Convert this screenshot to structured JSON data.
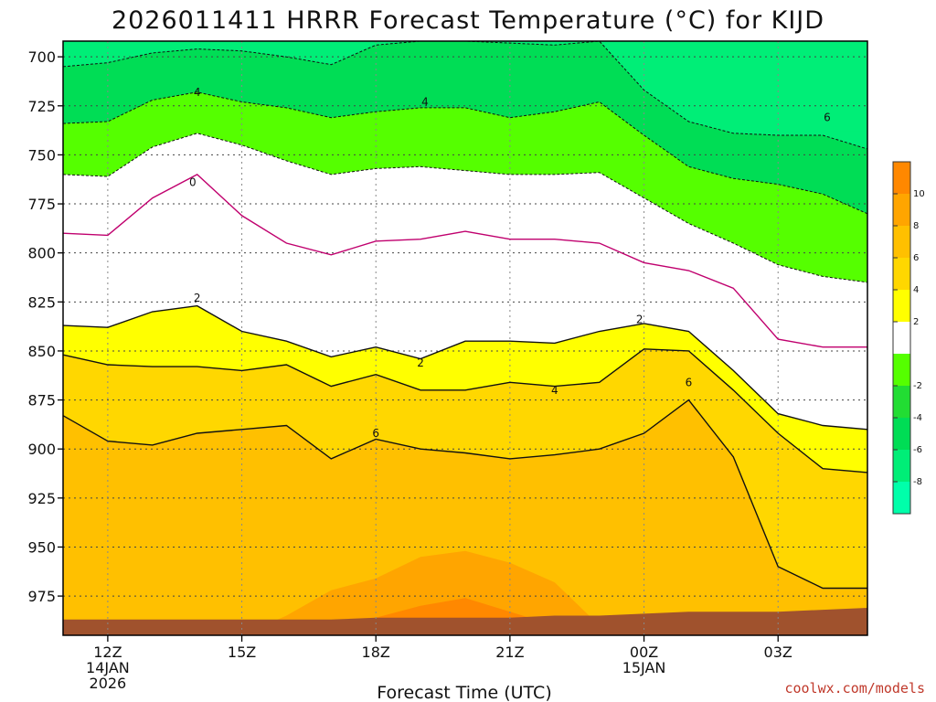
{
  "chart_data": {
    "type": "heatmap",
    "title": "2026011411 HRRR Forecast Temperature (°C) for KIJD",
    "xlabel": "Forecast Time (UTC)",
    "ylabel": "",
    "credit": "coolwx.com/models",
    "x_domain": [
      11,
      29
    ],
    "y_range": [
      692,
      995
    ],
    "y_ticks": [
      700,
      725,
      750,
      775,
      800,
      825,
      850,
      875,
      900,
      925,
      950,
      975
    ],
    "x_ticks": [
      {
        "hour": 12,
        "label": "12Z",
        "sub1": "14JAN",
        "sub2": "2026"
      },
      {
        "hour": 15,
        "label": "15Z",
        "sub1": "",
        "sub2": ""
      },
      {
        "hour": 18,
        "label": "18Z",
        "sub1": "",
        "sub2": ""
      },
      {
        "hour": 21,
        "label": "21Z",
        "sub1": "",
        "sub2": ""
      },
      {
        "hour": 24,
        "label": "00Z",
        "sub1": "15JAN",
        "sub2": ""
      },
      {
        "hour": 27,
        "label": "03Z",
        "sub1": "",
        "sub2": ""
      }
    ],
    "colorbar": {
      "colors": [
        "#ff8800",
        "#ffa500",
        "#ffc000",
        "#ffd700",
        "#ffff00",
        "#ffffff",
        "#55ff00",
        "#22dd33",
        "#00dd55",
        "#00ee77",
        "#00ffaa"
      ],
      "labels": [
        "10",
        "8",
        "6",
        "4",
        "2",
        "-2",
        "-4",
        "-6",
        "-8"
      ]
    },
    "hours": [
      11,
      12,
      13,
      14,
      15,
      16,
      17,
      18,
      19,
      20,
      21,
      22,
      23,
      24,
      25,
      26,
      27,
      28,
      29
    ],
    "bands": [
      {
        "name": "le_-6",
        "color": "#00ee77",
        "bottom": [
          692,
          692,
          692,
          692,
          692,
          692,
          692,
          692,
          692,
          692,
          692,
          692,
          692,
          716,
          732,
          738,
          738,
          738,
          738
        ]
      },
      {
        "name": "-6_to_-4",
        "color": "#00dd55",
        "bottom": [
          705,
          703,
          698,
          696,
          697,
          700,
          704,
          694,
          692,
          692,
          693,
          694,
          692,
          717,
          733,
          739,
          740,
          740,
          747
        ]
      },
      {
        "name": "-4_to_-2",
        "color": "#55ff00",
        "bottom": [
          734,
          733,
          722,
          718,
          723,
          726,
          731,
          728,
          726,
          726,
          731,
          728,
          723,
          740,
          756,
          762,
          765,
          770,
          780
        ]
      },
      {
        "name": "-2_to_2",
        "color": "#ffffff",
        "bottom": [
          760,
          761,
          746,
          739,
          745,
          753,
          760,
          757,
          756,
          758,
          760,
          760,
          759,
          772,
          785,
          795,
          806,
          812,
          815
        ]
      },
      {
        "name": "2_to_4",
        "color": "#ffff00",
        "bottom": [
          837,
          838,
          830,
          827,
          840,
          845,
          853,
          848,
          854,
          845,
          845,
          846,
          840,
          836,
          840,
          860,
          882,
          888,
          890
        ]
      },
      {
        "name": "4_to_6",
        "color": "#ffd700",
        "bottom": [
          852,
          857,
          858,
          858,
          860,
          857,
          868,
          862,
          870,
          870,
          866,
          868,
          866,
          849,
          850,
          870,
          892,
          910,
          912
        ]
      },
      {
        "name": "6_to_8",
        "color": "#ffc000",
        "bottom": [
          883,
          896,
          898,
          892,
          890,
          888,
          905,
          895,
          900,
          902,
          905,
          903,
          900,
          892,
          875,
          904,
          960,
          971,
          971
        ]
      },
      {
        "name": "8_to_10",
        "color": "#ffa500",
        "bottom": [
          995,
          995,
          995,
          995,
          995,
          985,
          972,
          966,
          955,
          952,
          958,
          968,
          990,
          995,
          995,
          995,
          995,
          995,
          995
        ]
      },
      {
        "name": "ge_10",
        "color": "#ff8800",
        "bottom": [
          995,
          995,
          995,
          995,
          995,
          995,
          994,
          986,
          980,
          976,
          983,
          990,
          995,
          995,
          995,
          995,
          995,
          995,
          995
        ]
      }
    ],
    "ground": {
      "color": "#a0522d",
      "p": [
        987,
        987,
        987,
        987,
        987,
        987,
        987,
        986,
        986,
        986,
        986,
        985,
        985,
        984,
        983,
        983,
        983,
        982,
        981
      ]
    },
    "contours": [
      {
        "level": "-6",
        "dash": true,
        "color": "#111111",
        "p": [
          705,
          703,
          698,
          696,
          697,
          700,
          704,
          694,
          692,
          692,
          693,
          694,
          692,
          717,
          733,
          739,
          740,
          740,
          747
        ],
        "labels": [
          {
            "hour": 28.1,
            "p": 731,
            "text": "6"
          }
        ]
      },
      {
        "level": "-4",
        "dash": true,
        "color": "#111111",
        "p": [
          734,
          733,
          722,
          718,
          723,
          726,
          731,
          728,
          726,
          726,
          731,
          728,
          723,
          740,
          756,
          762,
          765,
          770,
          780
        ],
        "labels": [
          {
            "hour": 14.0,
            "p": 718,
            "text": "4"
          },
          {
            "hour": 19.1,
            "p": 723,
            "text": "4"
          }
        ]
      },
      {
        "level": "-2",
        "dash": true,
        "color": "#111111",
        "p": [
          760,
          761,
          746,
          739,
          745,
          753,
          760,
          757,
          756,
          758,
          760,
          760,
          759,
          772,
          785,
          795,
          806,
          812,
          815
        ],
        "labels": []
      },
      {
        "level": "0",
        "dash": false,
        "color": "#c0006e",
        "p": [
          790,
          791,
          772,
          760,
          781,
          795,
          801,
          794,
          793,
          789,
          793,
          793,
          795,
          805,
          809,
          818,
          844,
          848,
          848
        ],
        "labels": [
          {
            "hour": 13.9,
            "p": 764,
            "text": "0"
          }
        ]
      },
      {
        "level": "2",
        "dash": false,
        "color": "#111111",
        "p": [
          837,
          838,
          830,
          827,
          840,
          845,
          853,
          848,
          854,
          845,
          845,
          846,
          840,
          836,
          840,
          860,
          882,
          888,
          890
        ],
        "labels": [
          {
            "hour": 14.0,
            "p": 823,
            "text": "2"
          },
          {
            "hour": 19.0,
            "p": 856,
            "text": "2"
          },
          {
            "hour": 23.9,
            "p": 834,
            "text": "2"
          }
        ]
      },
      {
        "level": "4",
        "dash": false,
        "color": "#111111",
        "p": [
          852,
          857,
          858,
          858,
          860,
          857,
          868,
          862,
          870,
          870,
          866,
          868,
          866,
          849,
          850,
          870,
          892,
          910,
          912
        ],
        "labels": [
          {
            "hour": 22.0,
            "p": 870,
            "text": "4"
          }
        ]
      },
      {
        "level": "6",
        "dash": false,
        "color": "#111111",
        "p": [
          883,
          896,
          898,
          892,
          890,
          888,
          905,
          895,
          900,
          902,
          905,
          903,
          900,
          892,
          875,
          904,
          960,
          971,
          971
        ],
        "labels": [
          {
            "hour": 18.0,
            "p": 892,
            "text": "6"
          },
          {
            "hour": 25.0,
            "p": 866,
            "text": "6"
          }
        ]
      }
    ]
  }
}
